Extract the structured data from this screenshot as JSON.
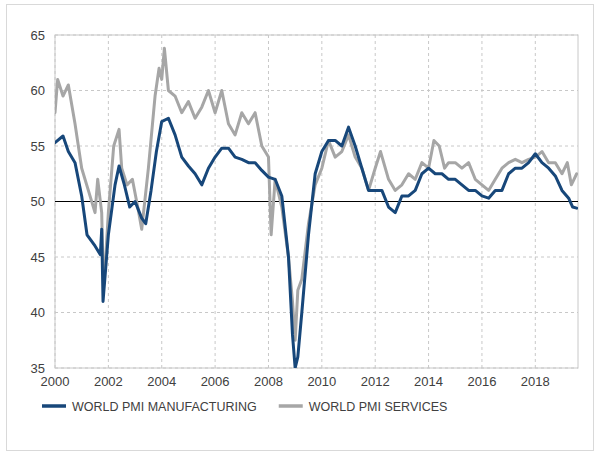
{
  "chart_data": {
    "type": "line",
    "xlim": [
      2000,
      2019.6
    ],
    "xticks": [
      2000,
      2002,
      2004,
      2006,
      2008,
      2010,
      2012,
      2014,
      2016,
      2018
    ],
    "ylim": [
      35,
      65
    ],
    "yticks": [
      35,
      40,
      45,
      50,
      55,
      60,
      65
    ],
    "grid": true,
    "legend": "bottom",
    "reference_line": 50,
    "series": [
      {
        "name": "WORLD PMI MANUFACTURING",
        "color": "#17477a",
        "x": [
          2000.0,
          2000.3,
          2000.5,
          2000.75,
          2001.0,
          2001.2,
          2001.5,
          2001.7,
          2001.75,
          2001.8,
          2001.9,
          2002.0,
          2002.25,
          2002.4,
          2002.6,
          2002.8,
          2003.0,
          2003.25,
          2003.4,
          2003.6,
          2003.8,
          2004.0,
          2004.25,
          2004.5,
          2004.75,
          2005.0,
          2005.25,
          2005.5,
          2005.75,
          2006.0,
          2006.25,
          2006.5,
          2006.75,
          2007.0,
          2007.25,
          2007.5,
          2007.75,
          2008.0,
          2008.25,
          2008.5,
          2008.75,
          2008.9,
          2009.0,
          2009.1,
          2009.25,
          2009.5,
          2009.75,
          2010.0,
          2010.25,
          2010.5,
          2010.75,
          2011.0,
          2011.25,
          2011.5,
          2011.75,
          2012.0,
          2012.25,
          2012.5,
          2012.75,
          2013.0,
          2013.25,
          2013.5,
          2013.75,
          2014.0,
          2014.25,
          2014.5,
          2014.75,
          2015.0,
          2015.25,
          2015.5,
          2015.75,
          2016.0,
          2016.25,
          2016.5,
          2016.75,
          2017.0,
          2017.25,
          2017.5,
          2017.75,
          2018.0,
          2018.25,
          2018.5,
          2018.75,
          2019.0,
          2019.25,
          2019.4,
          2019.55
        ],
        "values": [
          55.3,
          55.9,
          54.5,
          53.5,
          50.5,
          47,
          46,
          45.2,
          47.5,
          41,
          44,
          47,
          51.5,
          53.2,
          51.5,
          49.5,
          50,
          48.5,
          48,
          51,
          54.5,
          57.2,
          57.5,
          56,
          54,
          53.2,
          52.5,
          51.5,
          53,
          54,
          54.8,
          54.8,
          54,
          53.8,
          53.5,
          53.5,
          52.8,
          52.2,
          52,
          50.5,
          45,
          38,
          35,
          36,
          40,
          47,
          52.5,
          54.5,
          55.5,
          55.5,
          55,
          56.7,
          55,
          53,
          51,
          51,
          51,
          49.5,
          49,
          50.5,
          50.5,
          51,
          52.5,
          53,
          52.5,
          52.5,
          52,
          52,
          51.5,
          51,
          51,
          50.5,
          50.3,
          51,
          51,
          52.5,
          53,
          53,
          53.5,
          54.3,
          53.5,
          53,
          52.3,
          51,
          50.3,
          49.5,
          49.4
        ]
      },
      {
        "name": "WORLD PMI SERVICES",
        "color": "#a6a6a6",
        "x": [
          2000.0,
          2000.1,
          2000.3,
          2000.5,
          2000.75,
          2001.0,
          2001.25,
          2001.5,
          2001.6,
          2001.75,
          2001.8,
          2001.9,
          2002.0,
          2002.2,
          2002.4,
          2002.5,
          2002.7,
          2002.9,
          2003.1,
          2003.25,
          2003.5,
          2003.75,
          2003.9,
          2004.0,
          2004.1,
          2004.25,
          2004.5,
          2004.75,
          2005.0,
          2005.25,
          2005.5,
          2005.75,
          2006.0,
          2006.25,
          2006.5,
          2006.75,
          2007.0,
          2007.25,
          2007.5,
          2007.75,
          2008.0,
          2008.1,
          2008.25,
          2008.5,
          2008.75,
          2008.9,
          2009.0,
          2009.1,
          2009.25,
          2009.5,
          2009.75,
          2010.0,
          2010.25,
          2010.5,
          2010.75,
          2011.0,
          2011.25,
          2011.5,
          2011.75,
          2012.0,
          2012.2,
          2012.5,
          2012.75,
          2013.0,
          2013.25,
          2013.5,
          2013.75,
          2014.0,
          2014.2,
          2014.4,
          2014.6,
          2014.75,
          2015.0,
          2015.25,
          2015.5,
          2015.75,
          2016.0,
          2016.25,
          2016.5,
          2016.75,
          2017.0,
          2017.25,
          2017.5,
          2017.75,
          2018.0,
          2018.25,
          2018.5,
          2018.75,
          2019.0,
          2019.2,
          2019.35,
          2019.45,
          2019.55
        ],
        "values": [
          58,
          61,
          59.5,
          60.5,
          57,
          53,
          51,
          49,
          52,
          49,
          43.5,
          45,
          49,
          55,
          56.5,
          53,
          51.5,
          52,
          49.5,
          47.5,
          53,
          59.5,
          62,
          61,
          63.8,
          60,
          59.5,
          58,
          59,
          57.5,
          58.5,
          60,
          58,
          60,
          57,
          56,
          58,
          57,
          58,
          55,
          54,
          47,
          52,
          49.5,
          45,
          41,
          37.5,
          42,
          43,
          48,
          51.5,
          53,
          55.5,
          54,
          54.5,
          56,
          54,
          53,
          51,
          53,
          54.5,
          52,
          51,
          51.5,
          52.5,
          52,
          53.5,
          53,
          55.5,
          55,
          53,
          53.5,
          53.5,
          53,
          53.5,
          52,
          51.5,
          51,
          52,
          53,
          53.5,
          53.8,
          53.5,
          53.8,
          54,
          54.5,
          53.5,
          53.5,
          52.5,
          53.5,
          51.5,
          52,
          52.5
        ]
      }
    ]
  }
}
